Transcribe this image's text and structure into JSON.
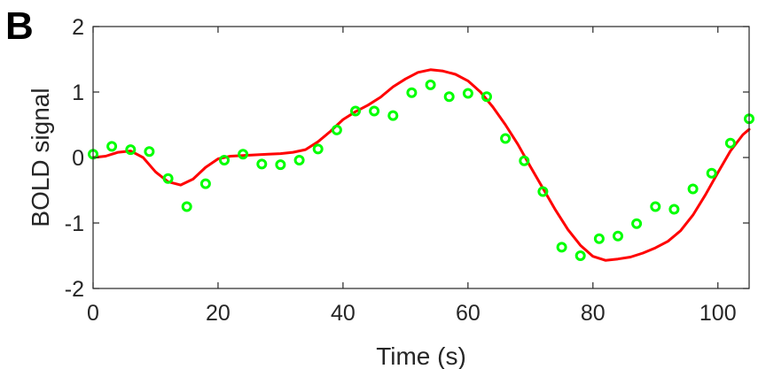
{
  "panel_label": "B",
  "chart_data": {
    "type": "scatter",
    "xlabel": "Time (s)",
    "ylabel": "BOLD signal",
    "xlim": [
      0,
      105
    ],
    "ylim": [
      -2,
      2
    ],
    "x_ticks": [
      0,
      20,
      40,
      60,
      80,
      100
    ],
    "y_ticks": [
      -2,
      -1,
      0,
      1,
      2
    ],
    "grid": false,
    "legend": "none",
    "series": [
      {
        "kind": "points",
        "marker": "open-circle",
        "color": "#00ff00",
        "x": [
          0,
          3,
          6,
          9,
          12,
          15,
          18,
          21,
          24,
          27,
          30,
          33,
          36,
          39,
          42,
          45,
          48,
          51,
          54,
          57,
          60,
          63,
          66,
          69,
          72,
          75,
          78,
          81,
          84,
          87,
          90,
          93,
          96,
          99,
          102,
          105
        ],
        "y": [
          0.05,
          0.17,
          0.12,
          0.09,
          -0.32,
          -0.75,
          -0.4,
          -0.04,
          0.05,
          -0.1,
          -0.11,
          -0.04,
          0.13,
          0.42,
          0.71,
          0.71,
          0.64,
          0.99,
          1.11,
          0.93,
          0.98,
          0.93,
          0.29,
          -0.05,
          -0.52,
          -1.37,
          -1.5,
          -1.24,
          -1.2,
          -1.01,
          -0.75,
          -0.79,
          -0.48,
          -0.24,
          0.22,
          0.59
        ]
      },
      {
        "kind": "line",
        "color": "#ff0000",
        "x": [
          0,
          2,
          4,
          6,
          8,
          10,
          12,
          14,
          16,
          18,
          20,
          22,
          24,
          26,
          28,
          30,
          32,
          34,
          36,
          38,
          40,
          42,
          44,
          46,
          48,
          50,
          52,
          54,
          56,
          58,
          60,
          62,
          64,
          66,
          68,
          70,
          72,
          74,
          76,
          78,
          80,
          82,
          84,
          86,
          88,
          90,
          92,
          94,
          96,
          98,
          100,
          102,
          104,
          105
        ],
        "y": [
          0.0,
          0.02,
          0.08,
          0.1,
          0.0,
          -0.22,
          -0.37,
          -0.42,
          -0.33,
          -0.15,
          -0.02,
          0.02,
          0.03,
          0.04,
          0.05,
          0.06,
          0.08,
          0.12,
          0.24,
          0.4,
          0.58,
          0.7,
          0.8,
          0.92,
          1.08,
          1.2,
          1.3,
          1.34,
          1.32,
          1.27,
          1.17,
          1.0,
          0.77,
          0.5,
          0.2,
          -0.14,
          -0.47,
          -0.8,
          -1.1,
          -1.34,
          -1.51,
          -1.57,
          -1.55,
          -1.52,
          -1.46,
          -1.38,
          -1.28,
          -1.12,
          -0.88,
          -0.57,
          -0.23,
          0.1,
          0.35,
          0.43
        ]
      }
    ]
  }
}
